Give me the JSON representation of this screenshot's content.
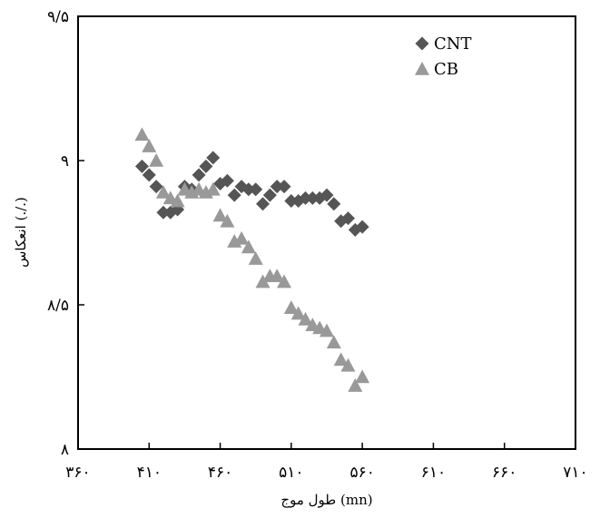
{
  "chart_data": {
    "type": "scatter",
    "title": "",
    "xlabel": "طول موج (mn)",
    "ylabel": "انعکاس (./.)",
    "xlim": [
      360,
      710
    ],
    "ylim": [
      8,
      9.5
    ],
    "x_ticks": [
      360,
      410,
      460,
      510,
      560,
      610,
      660,
      710
    ],
    "x_tick_labels": [
      "۳۶۰",
      "۴۱۰",
      "۴۶۰",
      "۵۱۰",
      "۵۶۰",
      "۶۱۰",
      "۶۶۰",
      "۷۱۰"
    ],
    "y_ticks": [
      8,
      8.5,
      9,
      9.5
    ],
    "y_tick_labels": [
      "۸",
      "۸/۵",
      "۹",
      "۹/۵"
    ],
    "grid": false,
    "legend": "top-right",
    "series": [
      {
        "name": "CNT",
        "marker": "diamond",
        "color": "#555555",
        "x": [
          405,
          410,
          415,
          420,
          425,
          430,
          435,
          440,
          445,
          450,
          455,
          460,
          465,
          470,
          475,
          480,
          485,
          490,
          495,
          500,
          505,
          510,
          515,
          520,
          525,
          530,
          535,
          540,
          545,
          550,
          555,
          560
        ],
        "y": [
          8.98,
          8.95,
          8.91,
          8.82,
          8.82,
          8.83,
          8.91,
          8.9,
          8.95,
          8.98,
          9.01,
          8.92,
          8.93,
          8.88,
          8.91,
          8.9,
          8.9,
          8.85,
          8.88,
          8.91,
          8.91,
          8.86,
          8.86,
          8.87,
          8.87,
          8.87,
          8.88,
          8.85,
          8.79,
          8.8,
          8.76,
          8.77
        ]
      },
      {
        "name": "CB",
        "marker": "triangle",
        "color": "#999999",
        "x": [
          405,
          410,
          415,
          420,
          425,
          430,
          435,
          440,
          445,
          450,
          455,
          460,
          465,
          470,
          475,
          480,
          485,
          490,
          495,
          500,
          505,
          510,
          515,
          520,
          525,
          530,
          535,
          540,
          545,
          550,
          555,
          560
        ],
        "y": [
          9.09,
          9.05,
          9.0,
          8.89,
          8.87,
          8.86,
          8.9,
          8.89,
          8.9,
          8.89,
          8.9,
          8.81,
          8.79,
          8.72,
          8.73,
          8.7,
          8.66,
          8.58,
          8.6,
          8.6,
          8.58,
          8.49,
          8.47,
          8.45,
          8.43,
          8.42,
          8.41,
          8.37,
          8.31,
          8.29,
          8.22,
          8.25
        ]
      }
    ]
  }
}
